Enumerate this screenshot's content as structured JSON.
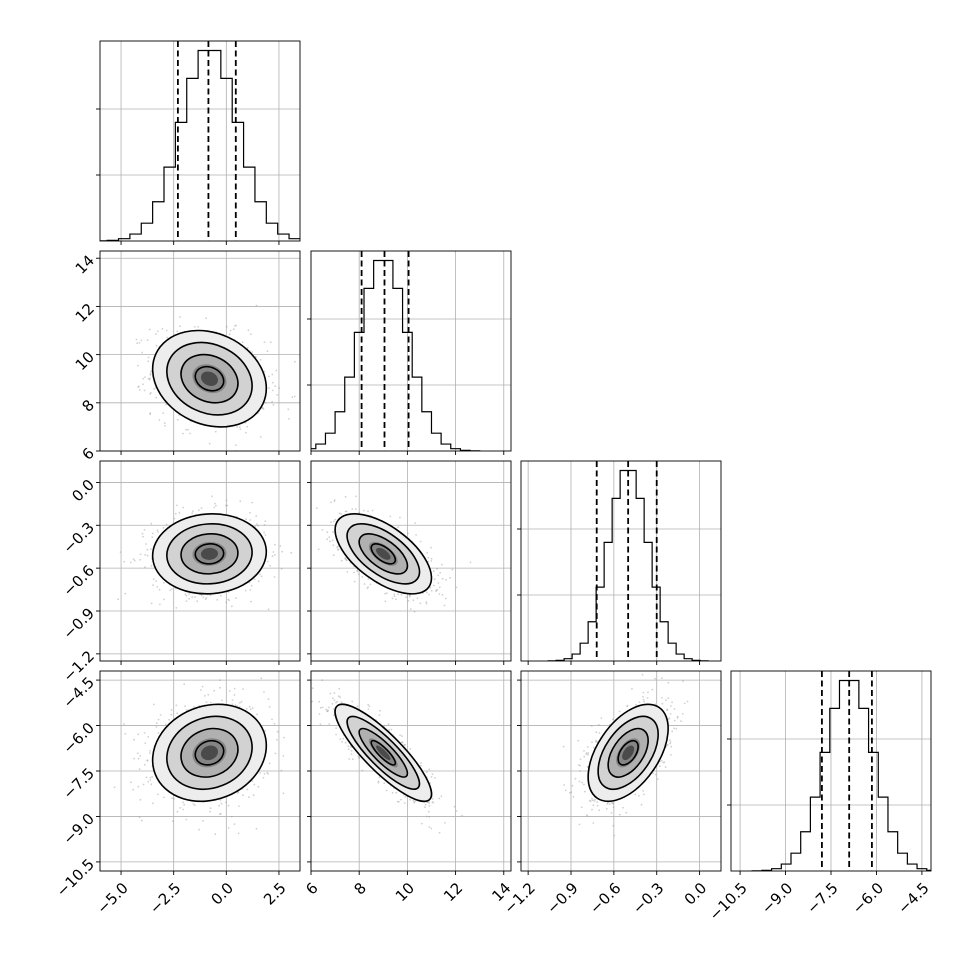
{
  "chart_data": {
    "type": "corner",
    "grid": true,
    "parameters": [
      {
        "range": [
          -6.0,
          3.5
        ],
        "ticks": [
          -5.0,
          -2.5,
          0.0,
          2.5
        ],
        "tick_labels": [
          "−5.0",
          "−2.5",
          "0.0",
          "2.5"
        ],
        "mean": -0.8,
        "sd": 1.35,
        "quantiles": [
          -2.3,
          -0.85,
          0.45
        ]
      },
      {
        "range": [
          6.0,
          14.3
        ],
        "ticks": [
          6,
          8,
          10,
          12,
          14
        ],
        "tick_labels": [
          "6",
          "8",
          "10",
          "12",
          "14"
        ],
        "mean": 9.0,
        "sd": 1.0,
        "quantiles": [
          8.1,
          9.05,
          10.05
        ]
      },
      {
        "range": [
          -1.25,
          0.15
        ],
        "ticks": [
          -1.2,
          -0.9,
          -0.6,
          -0.3,
          0.0
        ],
        "tick_labels": [
          "−1.2",
          "−0.9",
          "−0.6",
          "−0.3",
          "0.0"
        ],
        "mean": -0.5,
        "sd": 0.14,
        "quantiles": [
          -0.72,
          -0.5,
          -0.3
        ]
      },
      {
        "range": [
          -10.8,
          -4.2
        ],
        "ticks": [
          -10.5,
          -9.0,
          -7.5,
          -6.0,
          -4.5
        ],
        "tick_labels": [
          "−10.5",
          "−9.0",
          "−7.5",
          "−6.0",
          "−4.5"
        ],
        "mean": -6.9,
        "sd": 0.8,
        "quantiles": [
          -7.8,
          -6.9,
          -6.15
        ]
      }
    ],
    "correlations": {
      "1-0": -0.2,
      "2-0": 0.05,
      "2-1": -0.6,
      "3-0": 0.15,
      "3-1": -0.85,
      "3-2": 0.5
    },
    "contour_levels_sigma": [
      0.5,
      1.0,
      1.5,
      2.0
    ],
    "histogram_bins": 20,
    "quantile_lines": "dashed"
  }
}
